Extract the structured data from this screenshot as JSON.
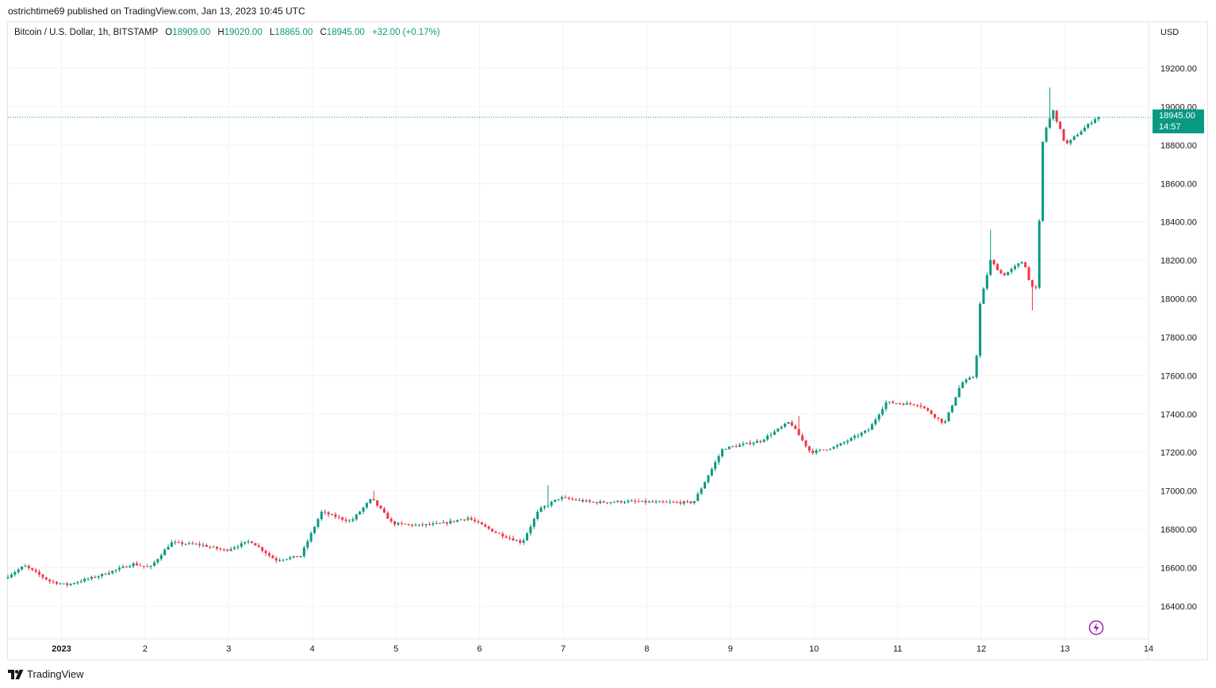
{
  "header": {
    "publish_line": "ostrichtime69 published on TradingView.com, Jan 13, 2023 10:45 UTC"
  },
  "legend": {
    "symbol": "Bitcoin / U.S. Dollar, 1h, BITSTAMP",
    "open_label": "O",
    "open": "18909.00",
    "high_label": "H",
    "high": "19020.00",
    "low_label": "L",
    "low": "18865.00",
    "close_label": "C",
    "close": "18945.00",
    "change": "+32.00 (+0.17%)"
  },
  "price_axis": {
    "currency": "USD",
    "last_price": "18945.00",
    "countdown": "14:57"
  },
  "footer": {
    "brand": "TradingView"
  },
  "colors": {
    "up": "#089981",
    "down": "#f23645",
    "grid": "#f0f3fa",
    "accent": "#9c27b0"
  },
  "chart_data": {
    "type": "candlestick",
    "interval": "1h",
    "ylim": [
      16230,
      19440
    ],
    "y_ticks": [
      16400,
      16600,
      16800,
      17000,
      17200,
      17400,
      17600,
      17800,
      18000,
      18200,
      18400,
      18600,
      18800,
      19000,
      19200
    ],
    "y_tick_labels": [
      "16400.00",
      "16600.00",
      "16800.00",
      "17000.00",
      "17200.00",
      "17400.00",
      "17600.00",
      "17800.00",
      "18000.00",
      "18200.00",
      "18400.00",
      "18600.00",
      "18800.00",
      "19000.00",
      "19200.00"
    ],
    "x_ticks": [
      1,
      2,
      3,
      4,
      5,
      6,
      7,
      8,
      9,
      10,
      11,
      12,
      13,
      14
    ],
    "x_tick_labels": [
      "2023",
      "2",
      "3",
      "4",
      "5",
      "6",
      "7",
      "8",
      "9",
      "10",
      "11",
      "12",
      "13",
      "14"
    ],
    "xlim": [
      0.36,
      14.0
    ],
    "last_price": 18945,
    "daily_anchors": [
      [
        0.36,
        16545
      ],
      [
        0.6,
        16610
      ],
      [
        0.9,
        16530
      ],
      [
        1.1,
        16510
      ],
      [
        1.5,
        16560
      ],
      [
        1.9,
        16620
      ],
      [
        2.1,
        16600
      ],
      [
        2.35,
        16730
      ],
      [
        2.7,
        16720
      ],
      [
        3.0,
        16690
      ],
      [
        3.3,
        16740
      ],
      [
        3.6,
        16640
      ],
      [
        3.9,
        16660
      ],
      [
        4.15,
        16890
      ],
      [
        4.5,
        16840
      ],
      [
        4.75,
        16960
      ],
      [
        5.0,
        16830
      ],
      [
        5.3,
        16820
      ],
      [
        5.6,
        16830
      ],
      [
        5.9,
        16860
      ],
      [
        6.25,
        16780
      ],
      [
        6.55,
        16730
      ],
      [
        6.75,
        16900
      ],
      [
        7.0,
        16965
      ],
      [
        7.4,
        16940
      ],
      [
        7.8,
        16945
      ],
      [
        8.2,
        16940
      ],
      [
        8.6,
        16940
      ],
      [
        8.95,
        17220
      ],
      [
        9.4,
        17260
      ],
      [
        9.75,
        17360
      ],
      [
        10.0,
        17200
      ],
      [
        10.3,
        17230
      ],
      [
        10.7,
        17320
      ],
      [
        10.9,
        17460
      ],
      [
        11.3,
        17450
      ],
      [
        11.6,
        17350
      ],
      [
        11.8,
        17560
      ],
      [
        11.97,
        17600
      ],
      [
        12.02,
        17960
      ],
      [
        12.15,
        18200
      ],
      [
        12.3,
        18120
      ],
      [
        12.55,
        18200
      ],
      [
        12.62,
        18080
      ],
      [
        12.7,
        18050
      ],
      [
        12.78,
        18850
      ],
      [
        12.9,
        18980
      ],
      [
        13.05,
        18800
      ],
      [
        13.25,
        18880
      ],
      [
        13.42,
        18945
      ]
    ],
    "spikes": [
      [
        12.82,
        19100
      ],
      [
        12.1,
        18360
      ],
      [
        12.6,
        17940
      ],
      [
        4.75,
        17000
      ],
      [
        6.8,
        17030
      ],
      [
        9.8,
        17390
      ]
    ]
  }
}
